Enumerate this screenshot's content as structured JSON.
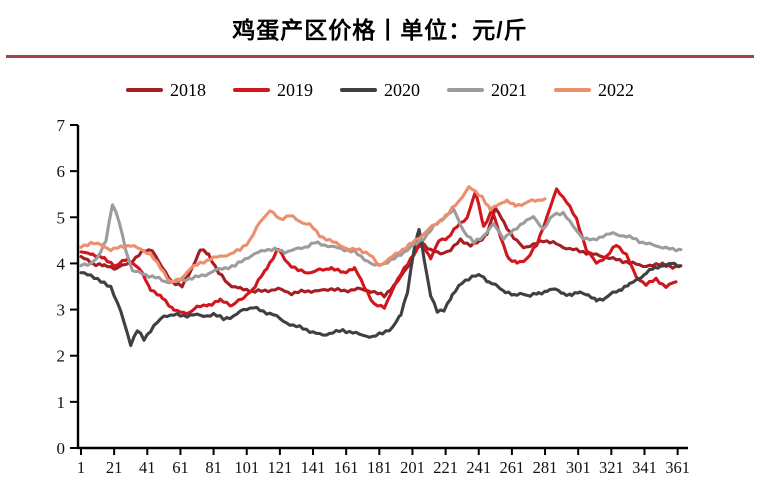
{
  "page": {
    "background": "#FFFFFF"
  },
  "header": {
    "title": "鸡蛋产区价格丨单位：元/斤",
    "underline_color": "#A04449"
  },
  "chart_data": {
    "type": "line",
    "title": "鸡蛋产区价格丨单位：元/斤",
    "unit": "元/斤",
    "xlabel": "",
    "ylabel": "",
    "grid": false,
    "legend_position": "top",
    "xlim": [
      1,
      366
    ],
    "ylim": [
      0,
      7
    ],
    "x_ticks": [
      1,
      21,
      41,
      61,
      81,
      101,
      121,
      141,
      161,
      181,
      201,
      221,
      241,
      261,
      281,
      301,
      321,
      341,
      361
    ],
    "y_ticks": [
      0,
      1,
      2,
      3,
      4,
      5,
      6,
      7
    ],
    "axis_color": "#000000",
    "series": [
      {
        "name": "2018",
        "color": "#A61D22",
        "x": [
          1,
          8,
          15,
          22,
          30,
          38,
          44,
          50,
          56,
          62,
          68,
          73,
          78,
          84,
          90,
          97,
          104,
          112,
          120,
          128,
          136,
          144,
          152,
          160,
          168,
          176,
          184,
          192,
          199,
          206,
          212,
          218,
          224,
          230,
          236,
          241,
          246,
          251,
          256,
          262,
          268,
          274,
          280,
          286,
          292,
          298,
          304,
          310,
          316,
          322,
          328,
          334,
          340,
          346,
          352,
          358,
          363
        ],
        "y": [
          4.15,
          4.0,
          3.95,
          3.9,
          4.0,
          4.25,
          4.3,
          3.9,
          3.6,
          3.5,
          3.9,
          4.3,
          4.2,
          3.8,
          3.55,
          3.45,
          3.4,
          3.4,
          3.45,
          3.35,
          3.4,
          3.4,
          3.45,
          3.4,
          3.45,
          3.4,
          3.3,
          3.6,
          4.0,
          4.45,
          4.3,
          4.2,
          4.3,
          4.5,
          4.4,
          4.45,
          4.65,
          5.2,
          4.9,
          4.55,
          4.35,
          4.4,
          4.5,
          4.45,
          4.35,
          4.3,
          4.25,
          4.2,
          4.15,
          4.1,
          4.05,
          4.0,
          3.95,
          3.95,
          4.0,
          3.9,
          3.95
        ]
      },
      {
        "name": "2019",
        "color": "#D2161E",
        "x": [
          1,
          8,
          15,
          22,
          29,
          36,
          43,
          50,
          57,
          64,
          71,
          78,
          85,
          92,
          99,
          106,
          113,
          120,
          126,
          132,
          138,
          145,
          152,
          159,
          166,
          172,
          178,
          184,
          190,
          196,
          202,
          207,
          212,
          217,
          222,
          228,
          234,
          239,
          244,
          249,
          254,
          259,
          264,
          270,
          276,
          282,
          288,
          294,
          300,
          306,
          312,
          318,
          324,
          330,
          336,
          342,
          348,
          354,
          360
        ],
        "y": [
          4.25,
          4.2,
          4.1,
          3.95,
          4.1,
          3.9,
          3.45,
          3.25,
          3.0,
          2.9,
          3.05,
          3.1,
          3.2,
          3.1,
          3.25,
          3.5,
          3.9,
          4.3,
          4.0,
          3.85,
          3.8,
          3.85,
          3.9,
          3.8,
          3.9,
          3.5,
          3.1,
          3.05,
          3.5,
          3.9,
          4.2,
          4.45,
          4.1,
          4.5,
          4.55,
          4.8,
          5.0,
          5.55,
          4.8,
          5.15,
          4.6,
          4.1,
          4.0,
          4.1,
          4.4,
          5.0,
          5.6,
          5.35,
          4.95,
          4.3,
          4.0,
          4.15,
          4.4,
          4.2,
          3.7,
          3.55,
          3.65,
          3.5,
          3.6
        ]
      },
      {
        "name": "2020",
        "color": "#404040",
        "x": [
          1,
          7,
          13,
          19,
          25,
          31,
          35,
          39,
          45,
          51,
          57,
          63,
          69,
          75,
          81,
          87,
          93,
          99,
          105,
          111,
          117,
          123,
          129,
          135,
          141,
          147,
          153,
          159,
          165,
          171,
          177,
          183,
          189,
          194,
          198,
          202,
          205,
          208,
          212,
          216,
          220,
          225,
          231,
          237,
          242,
          247,
          252,
          257,
          262,
          267,
          272,
          277,
          282,
          287,
          292,
          297,
          302,
          307,
          312,
          317,
          322,
          327,
          332,
          337,
          342,
          347,
          352,
          357,
          362
        ],
        "y": [
          3.8,
          3.75,
          3.6,
          3.5,
          2.95,
          2.25,
          2.55,
          2.35,
          2.65,
          2.85,
          2.9,
          2.85,
          2.9,
          2.85,
          2.9,
          2.8,
          2.85,
          3.0,
          3.05,
          2.95,
          2.9,
          2.75,
          2.65,
          2.6,
          2.5,
          2.45,
          2.5,
          2.55,
          2.5,
          2.45,
          2.4,
          2.5,
          2.6,
          2.9,
          3.4,
          4.3,
          4.75,
          4.1,
          3.3,
          2.95,
          3.0,
          3.3,
          3.6,
          3.7,
          3.76,
          3.6,
          3.5,
          3.4,
          3.3,
          3.35,
          3.3,
          3.35,
          3.4,
          3.45,
          3.35,
          3.3,
          3.4,
          3.3,
          3.2,
          3.25,
          3.35,
          3.45,
          3.55,
          3.65,
          3.8,
          3.9,
          3.95,
          4.0,
          3.95
        ]
      },
      {
        "name": "2021",
        "color": "#9C9C9C",
        "x": [
          1,
          6,
          11,
          16,
          20,
          24,
          28,
          32,
          36,
          40,
          46,
          52,
          58,
          64,
          70,
          76,
          82,
          88,
          94,
          100,
          106,
          112,
          118,
          124,
          130,
          136,
          142,
          148,
          154,
          160,
          166,
          172,
          178,
          184,
          190,
          196,
          202,
          208,
          214,
          220,
          226,
          232,
          238,
          244,
          250,
          256,
          262,
          268,
          274,
          280,
          286,
          292,
          298,
          304,
          310,
          316,
          322,
          328,
          334,
          340,
          346,
          352,
          358,
          363
        ],
        "y": [
          3.95,
          4.0,
          4.1,
          4.5,
          5.3,
          4.9,
          4.3,
          3.85,
          3.8,
          3.75,
          3.7,
          3.6,
          3.6,
          3.65,
          3.7,
          3.75,
          3.85,
          3.9,
          3.95,
          4.1,
          4.2,
          4.3,
          4.3,
          4.25,
          4.3,
          4.35,
          4.45,
          4.4,
          4.35,
          4.3,
          4.25,
          4.1,
          3.95,
          4.0,
          4.1,
          4.25,
          4.4,
          4.55,
          4.8,
          5.0,
          5.15,
          4.7,
          4.45,
          4.6,
          4.85,
          4.55,
          4.7,
          4.9,
          5.0,
          4.75,
          5.05,
          5.1,
          4.8,
          4.55,
          4.5,
          4.6,
          4.65,
          4.6,
          4.55,
          4.45,
          4.4,
          4.35,
          4.3,
          4.3
        ]
      },
      {
        "name": "2022",
        "color": "#EB8F6F",
        "x": [
          1,
          7,
          13,
          19,
          25,
          31,
          37,
          43,
          49,
          55,
          61,
          67,
          73,
          79,
          85,
          91,
          97,
          103,
          109,
          115,
          121,
          127,
          133,
          139,
          145,
          151,
          157,
          163,
          169,
          175,
          181,
          187,
          193,
          199,
          205,
          211,
          217,
          223,
          229,
          235,
          243,
          248,
          253,
          258,
          263,
          268,
          273,
          281
        ],
        "y": [
          4.35,
          4.45,
          4.4,
          4.3,
          4.35,
          4.4,
          4.3,
          4.2,
          3.9,
          3.6,
          3.65,
          3.9,
          4.0,
          4.1,
          4.15,
          4.2,
          4.3,
          4.5,
          4.9,
          5.15,
          4.95,
          5.05,
          4.9,
          4.85,
          4.6,
          4.5,
          4.4,
          4.3,
          4.3,
          4.2,
          3.95,
          4.1,
          4.25,
          4.4,
          4.55,
          4.75,
          4.9,
          5.1,
          5.35,
          5.65,
          5.45,
          5.15,
          5.3,
          5.35,
          5.25,
          5.3,
          5.35,
          5.4
        ]
      }
    ]
  }
}
